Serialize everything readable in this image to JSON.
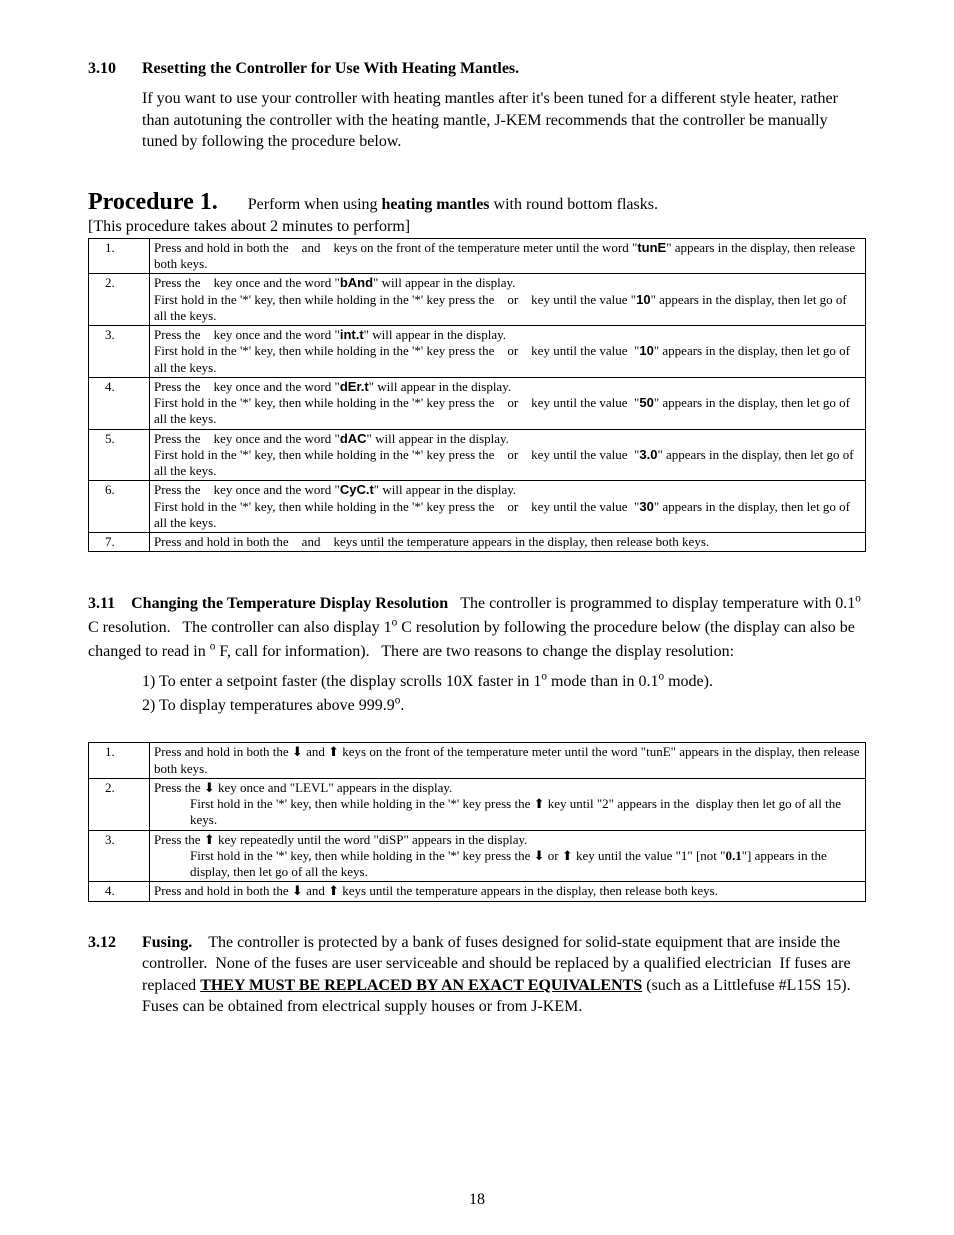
{
  "sec310": {
    "num": "3.10",
    "title": "Resetting the Controller for Use With Heating Mantles.",
    "text": "If you want to use your controller with heating mantles after it's been tuned for a different style heater, rather than autotuning the controller with the heating mantle, J-KEM recommends that the controller be manually tuned by following the procedure below."
  },
  "proc1": {
    "title": "Procedure 1.",
    "sub_a": "Perform when using ",
    "sub_b": "heating mantles",
    "sub_c": " with round bottom flasks.",
    "note": "[This procedure takes about 2 minutes to perform]",
    "rows": [
      {
        "n": "1.",
        "html": "Press and hold in both the &nbsp;&nbsp; and &nbsp;&nbsp; keys on the front of the temperature meter until the word \"<span class='sf'><b>tunE</b></span>\" appears in the display, then release both keys."
      },
      {
        "n": "2.",
        "html": "Press the &nbsp;&nbsp; key once and the word \"<span class='sf'><b>bAnd</b></span>\" will appear in the display.<br>First hold in the '*' key, then while holding in the '*' key press the &nbsp;&nbsp; or &nbsp;&nbsp; key until the value \"<span class='sf'><b>10</b></span>\" appears in the display, then let go of all the keys."
      },
      {
        "n": "3.",
        "html": "Press the &nbsp;&nbsp; key once and the word \"<span class='sf'><b>int.t</b></span>\" will appear in the display.<br>First hold in the '*' key, then while holding in the '*' key press the &nbsp;&nbsp; or &nbsp;&nbsp; key until the value &nbsp;\"<span class='sf'><b>10</b></span>\" appears in the display, then let go of all the keys."
      },
      {
        "n": "4.",
        "html": "Press the &nbsp;&nbsp; key once and the word \"<span class='sf'><b>dEr.t</b></span>\" will appear in the display.<br>First hold in the '*' key, then while holding in the '*' key press the &nbsp;&nbsp; or &nbsp;&nbsp; key until the value &nbsp;\"<span class='sf'><b>50</b></span>\" appears in the display, then let go of all the keys."
      },
      {
        "n": "5.",
        "html": "Press the &nbsp;&nbsp; key once and the word \"<span class='sf'><b>dAC</b></span>\" will appear in the display.<br>First hold in the '*' key, then while holding in the '*' key press the &nbsp;&nbsp; or &nbsp;&nbsp; key until the value &nbsp;\"<span class='sf'><b>3.0</b></span>\" appears in the display, then let go of all the keys."
      },
      {
        "n": "6.",
        "html": "Press the &nbsp;&nbsp; key once and the word \"<span class='sf'><b>CyC.t</b></span>\" will appear in the display.<br>First hold in the '*' key, then while holding in the '*' key press the &nbsp;&nbsp; or &nbsp;&nbsp; key until the value &nbsp;\"<span class='sf'><b>30</b></span>\" appears in the display, then let go of all the keys."
      },
      {
        "n": "7.",
        "html": "Press and hold in both the &nbsp;&nbsp; and &nbsp;&nbsp; keys until the temperature appears in the display, then release both keys."
      }
    ]
  },
  "sec311": {
    "num": "3.11",
    "title": "Changing the Temperature Display Resolution",
    "para_html": "&nbsp;&nbsp;&nbsp;The controller is programmed to display temperature with 0.1<sup>o</sup> C resolution.&nbsp;&nbsp; The controller can also display 1<sup>o</sup> C resolution by following the procedure below (the display can also be changed to read in <sup>o</sup> F, call for information).&nbsp;&nbsp; There are two reasons to change the display resolution:",
    "reasons": [
      "1) To enter a setpoint faster (the display scrolls 10X faster in 1<sup>o</sup> mode than in 0.1<sup>o</sup> mode).",
      "2) To display temperatures above 999.9<sup>o</sup>."
    ],
    "rows": [
      {
        "n": "1.",
        "html": "Press and hold in both the &#x2B07; and &#x2B06; keys on the front of the temperature meter until the word \"tunE\" appears in the display, then release both keys."
      },
      {
        "n": "2.",
        "html": "Press the &#x2B07; key once and \"LEVL\" appears in the display.<br><span class='indent2'>First hold in the '*' key, then while holding in the '*' key press the &#x2B06; key until \"2\" appears in the &nbsp;display then let go of all the keys.</span>"
      },
      {
        "n": "3.",
        "html": "Press the &#x2B06; key repeatedly until the word \"diSP\" appears in the display.<br><span class='indent2'>First hold in the '*' key, then while holding in the '*' key press the &#x2B07; or &#x2B06; key until the value \"1\" [not \"<b>0.1</b>\"] appears in the display, then let go of all the keys.</span>"
      },
      {
        "n": "4.",
        "html": "Press and hold in both the &#x2B07; and &#x2B06; keys until the temperature appears in the display, then release both keys."
      }
    ]
  },
  "sec312": {
    "num": "3.12",
    "title": "Fusing.",
    "html": "The controller is protected by a bank of fuses designed for solid-state equipment that are inside the controller.&nbsp; None of the fuses are user serviceable and should be replaced by a qualified electrician&nbsp; If fuses are replaced <span class='caps'>THEY MUST BE REPLACED BY AN EXACT EQUIVALENTS</span> (such as a Littlefuse #L15S 15).&nbsp; Fuses can be obtained from electrical supply houses or from J-KEM."
  },
  "page_number": "18"
}
